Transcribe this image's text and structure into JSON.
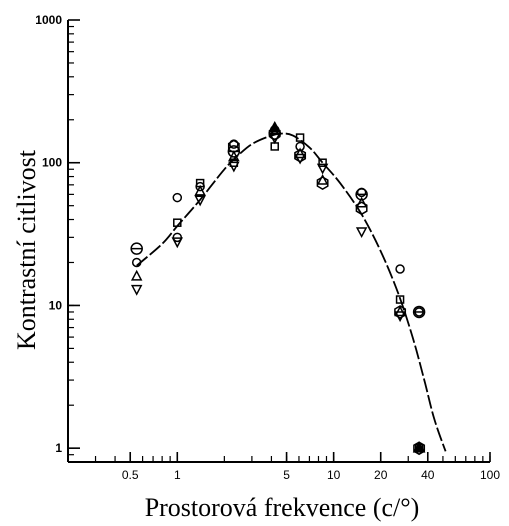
{
  "chart_data": {
    "type": "scatter",
    "title": "",
    "xlabel": "Prostorová frekvence (c/°)",
    "ylabel": "Kontrastní citlivost",
    "xscale": "log",
    "yscale": "log",
    "xlim": [
      0.2,
      100
    ],
    "ylim": [
      0.8,
      1000
    ],
    "x_ticks": [
      {
        "value": 0.5,
        "label": "0.5"
      },
      {
        "value": 1,
        "label": "1"
      },
      {
        "value": 5,
        "label": "5"
      },
      {
        "value": 10,
        "label": "10"
      },
      {
        "value": 20,
        "label": "20"
      },
      {
        "value": 40,
        "label": "40"
      },
      {
        "value": 100,
        "label": "100"
      }
    ],
    "y_ticks": [
      {
        "value": 1,
        "label": "1"
      },
      {
        "value": 10,
        "label": "10"
      },
      {
        "value": 100,
        "label": "100"
      },
      {
        "value": 1000,
        "label": "1000"
      }
    ],
    "grid": false,
    "legend": "none",
    "series": [
      {
        "marker": "circle",
        "points": [
          [
            0.55,
            20
          ],
          [
            1.0,
            57
          ],
          [
            1.0,
            30
          ],
          [
            1.4,
            68
          ],
          [
            2.3,
            135
          ],
          [
            4.2,
            170
          ],
          [
            6.1,
            130
          ],
          [
            15.1,
            62
          ],
          [
            26.6,
            18
          ],
          [
            35.2,
            9
          ]
        ]
      },
      {
        "marker": "circle-cross",
        "points": [
          [
            0.55,
            25
          ],
          [
            2.3,
            120
          ],
          [
            4.2,
            160
          ],
          [
            15.1,
            60
          ],
          [
            35.2,
            9
          ]
        ]
      },
      {
        "marker": "square",
        "points": [
          [
            1.0,
            38
          ],
          [
            1.4,
            72
          ],
          [
            2.3,
            100
          ],
          [
            4.2,
            130
          ],
          [
            6.1,
            150
          ],
          [
            8.5,
            100
          ],
          [
            26.6,
            11
          ],
          [
            35.2,
            1
          ]
        ]
      },
      {
        "marker": "triangle-up",
        "points": [
          [
            0.55,
            16
          ],
          [
            1.4,
            63
          ],
          [
            2.3,
            110
          ],
          [
            4.2,
            175
          ],
          [
            6.1,
            115
          ],
          [
            8.5,
            75
          ],
          [
            15.1,
            52
          ],
          [
            26.6,
            9
          ],
          [
            35.2,
            1
          ]
        ]
      },
      {
        "marker": "triangle-down",
        "points": [
          [
            0.55,
            13
          ],
          [
            1.0,
            28
          ],
          [
            1.4,
            55
          ],
          [
            2.3,
            95
          ],
          [
            4.2,
            150
          ],
          [
            6.1,
            108
          ],
          [
            8.5,
            92
          ],
          [
            15.1,
            33
          ],
          [
            26.6,
            8.5
          ]
        ]
      },
      {
        "marker": "hexagon",
        "points": [
          [
            2.3,
            130
          ],
          [
            4.2,
            160
          ],
          [
            6.1,
            112
          ],
          [
            8.5,
            72
          ],
          [
            15.1,
            48
          ],
          [
            26.6,
            9
          ],
          [
            35.2,
            1
          ]
        ]
      }
    ],
    "fit_curve": {
      "x": [
        0.55,
        0.8,
        1.0,
        1.4,
        2.0,
        2.5,
        3.0,
        3.8,
        4.6,
        5.5,
        7.0,
        8.5,
        11,
        15,
        20,
        26,
        32,
        38,
        44,
        52
      ],
      "y": [
        19,
        27,
        36,
        55,
        90,
        115,
        135,
        152,
        160,
        155,
        128,
        100,
        72,
        44,
        24,
        12,
        6,
        3,
        1.6,
        0.95
      ]
    }
  }
}
